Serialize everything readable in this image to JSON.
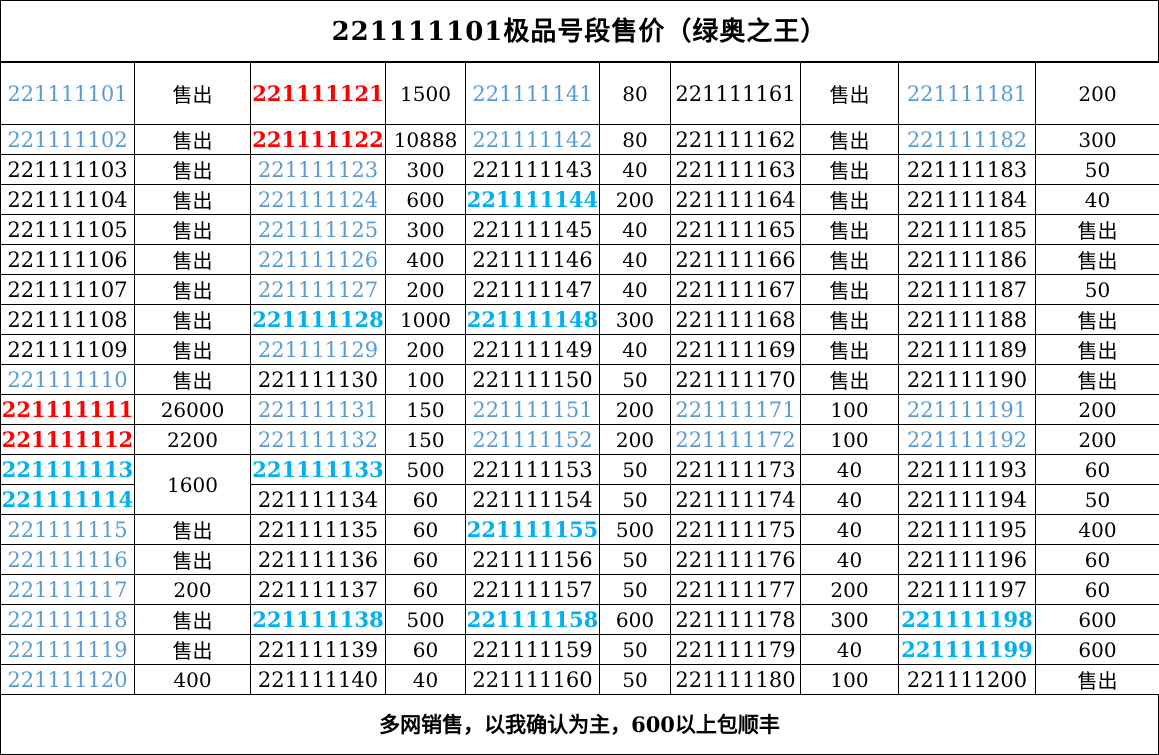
{
  "title": "221111101极品号段售价（绿奥之王）",
  "footer": "多网销售，以我确认为主，600以上包顺丰",
  "colors": {
    "black": "#000000",
    "blue": "#5b9bd5",
    "red": "#ff0000",
    "cyan": "#00b0f0"
  },
  "rows": [
    [
      [
        "221111101",
        "blue"
      ],
      [
        "售出",
        "black"
      ],
      [
        "221111121",
        "red"
      ],
      [
        "1500",
        "black"
      ],
      [
        "221111141",
        "blue"
      ],
      [
        "80",
        "black"
      ],
      [
        "221111161",
        "black"
      ],
      [
        "售出",
        "black"
      ],
      [
        "221111181",
        "blue"
      ],
      [
        "200",
        "black"
      ]
    ],
    [
      [
        "221111102",
        "blue"
      ],
      [
        "售出",
        "black"
      ],
      [
        "221111122",
        "red"
      ],
      [
        "10888",
        "black"
      ],
      [
        "221111142",
        "blue"
      ],
      [
        "80",
        "black"
      ],
      [
        "221111162",
        "black"
      ],
      [
        "售出",
        "black"
      ],
      [
        "221111182",
        "blue"
      ],
      [
        "300",
        "black"
      ]
    ],
    [
      [
        "221111103",
        "black"
      ],
      [
        "售出",
        "black"
      ],
      [
        "221111123",
        "blue"
      ],
      [
        "300",
        "black"
      ],
      [
        "221111143",
        "black"
      ],
      [
        "40",
        "black"
      ],
      [
        "221111163",
        "black"
      ],
      [
        "售出",
        "black"
      ],
      [
        "221111183",
        "black"
      ],
      [
        "50",
        "black"
      ]
    ],
    [
      [
        "221111104",
        "black"
      ],
      [
        "售出",
        "black"
      ],
      [
        "221111124",
        "blue"
      ],
      [
        "600",
        "black"
      ],
      [
        "221111144",
        "cyan"
      ],
      [
        "200",
        "black"
      ],
      [
        "221111164",
        "black"
      ],
      [
        "售出",
        "black"
      ],
      [
        "221111184",
        "black"
      ],
      [
        "40",
        "black"
      ]
    ],
    [
      [
        "221111105",
        "black"
      ],
      [
        "售出",
        "black"
      ],
      [
        "221111125",
        "blue"
      ],
      [
        "300",
        "black"
      ],
      [
        "221111145",
        "black"
      ],
      [
        "40",
        "black"
      ],
      [
        "221111165",
        "black"
      ],
      [
        "售出",
        "black"
      ],
      [
        "221111185",
        "black"
      ],
      [
        "售出",
        "black"
      ]
    ],
    [
      [
        "221111106",
        "black"
      ],
      [
        "售出",
        "black"
      ],
      [
        "221111126",
        "blue"
      ],
      [
        "400",
        "black"
      ],
      [
        "221111146",
        "black"
      ],
      [
        "40",
        "black"
      ],
      [
        "221111166",
        "black"
      ],
      [
        "售出",
        "black"
      ],
      [
        "221111186",
        "black"
      ],
      [
        "售出",
        "black"
      ]
    ],
    [
      [
        "221111107",
        "black"
      ],
      [
        "售出",
        "black"
      ],
      [
        "221111127",
        "blue"
      ],
      [
        "200",
        "black"
      ],
      [
        "221111147",
        "black"
      ],
      [
        "40",
        "black"
      ],
      [
        "221111167",
        "black"
      ],
      [
        "售出",
        "black"
      ],
      [
        "221111187",
        "black"
      ],
      [
        "50",
        "black"
      ]
    ],
    [
      [
        "221111108",
        "black"
      ],
      [
        "售出",
        "black"
      ],
      [
        "221111128",
        "cyan"
      ],
      [
        "1000",
        "black"
      ],
      [
        "221111148",
        "cyan"
      ],
      [
        "300",
        "black"
      ],
      [
        "221111168",
        "black"
      ],
      [
        "售出",
        "black"
      ],
      [
        "221111188",
        "black"
      ],
      [
        "售出",
        "black"
      ]
    ],
    [
      [
        "221111109",
        "black"
      ],
      [
        "售出",
        "black"
      ],
      [
        "221111129",
        "blue"
      ],
      [
        "200",
        "black"
      ],
      [
        "221111149",
        "black"
      ],
      [
        "40",
        "black"
      ],
      [
        "221111169",
        "black"
      ],
      [
        "售出",
        "black"
      ],
      [
        "221111189",
        "black"
      ],
      [
        "售出",
        "black"
      ]
    ],
    [
      [
        "221111110",
        "blue"
      ],
      [
        "售出",
        "black"
      ],
      [
        "221111130",
        "black"
      ],
      [
        "100",
        "black"
      ],
      [
        "221111150",
        "black"
      ],
      [
        "50",
        "black"
      ],
      [
        "221111170",
        "black"
      ],
      [
        "售出",
        "black"
      ],
      [
        "221111190",
        "black"
      ],
      [
        "售出",
        "black"
      ]
    ],
    [
      [
        "221111111",
        "red"
      ],
      [
        "26000",
        "black"
      ],
      [
        "221111131",
        "blue"
      ],
      [
        "150",
        "black"
      ],
      [
        "221111151",
        "blue"
      ],
      [
        "200",
        "black"
      ],
      [
        "221111171",
        "blue"
      ],
      [
        "100",
        "black"
      ],
      [
        "221111191",
        "blue"
      ],
      [
        "200",
        "black"
      ]
    ],
    [
      [
        "221111112",
        "red"
      ],
      [
        "2200",
        "black"
      ],
      [
        "221111132",
        "blue"
      ],
      [
        "150",
        "black"
      ],
      [
        "221111152",
        "blue"
      ],
      [
        "200",
        "black"
      ],
      [
        "221111172",
        "blue"
      ],
      [
        "100",
        "black"
      ],
      [
        "221111192",
        "blue"
      ],
      [
        "200",
        "black"
      ]
    ],
    [
      [
        "221111113",
        "cyan"
      ],
      [
        "1600",
        "black"
      ],
      [
        "221111133",
        "cyan"
      ],
      [
        "500",
        "black"
      ],
      [
        "221111153",
        "black"
      ],
      [
        "50",
        "black"
      ],
      [
        "221111173",
        "black"
      ],
      [
        "40",
        "black"
      ],
      [
        "221111193",
        "black"
      ],
      [
        "60",
        "black"
      ]
    ],
    [
      [
        "221111114",
        "cyan"
      ],
      null,
      [
        "221111134",
        "black"
      ],
      [
        "60",
        "black"
      ],
      [
        "221111154",
        "black"
      ],
      [
        "50",
        "black"
      ],
      [
        "221111174",
        "black"
      ],
      [
        "40",
        "black"
      ],
      [
        "221111194",
        "black"
      ],
      [
        "50",
        "black"
      ]
    ],
    [
      [
        "221111115",
        "blue"
      ],
      [
        "售出",
        "black"
      ],
      [
        "221111135",
        "black"
      ],
      [
        "60",
        "black"
      ],
      [
        "221111155",
        "cyan"
      ],
      [
        "500",
        "black"
      ],
      [
        "221111175",
        "black"
      ],
      [
        "40",
        "black"
      ],
      [
        "221111195",
        "black"
      ],
      [
        "400",
        "black"
      ]
    ],
    [
      [
        "221111116",
        "blue"
      ],
      [
        "售出",
        "black"
      ],
      [
        "221111136",
        "black"
      ],
      [
        "60",
        "black"
      ],
      [
        "221111156",
        "black"
      ],
      [
        "50",
        "black"
      ],
      [
        "221111176",
        "black"
      ],
      [
        "40",
        "black"
      ],
      [
        "221111196",
        "black"
      ],
      [
        "60",
        "black"
      ]
    ],
    [
      [
        "221111117",
        "blue"
      ],
      [
        "200",
        "black"
      ],
      [
        "221111137",
        "black"
      ],
      [
        "60",
        "black"
      ],
      [
        "221111157",
        "black"
      ],
      [
        "50",
        "black"
      ],
      [
        "221111177",
        "black"
      ],
      [
        "200",
        "black"
      ],
      [
        "221111197",
        "black"
      ],
      [
        "60",
        "black"
      ]
    ],
    [
      [
        "221111118",
        "blue"
      ],
      [
        "售出",
        "black"
      ],
      [
        "221111138",
        "cyan"
      ],
      [
        "500",
        "black"
      ],
      [
        "221111158",
        "cyan"
      ],
      [
        "600",
        "black"
      ],
      [
        "221111178",
        "black"
      ],
      [
        "300",
        "black"
      ],
      [
        "221111198",
        "cyan"
      ],
      [
        "600",
        "black"
      ]
    ],
    [
      [
        "221111119",
        "blue"
      ],
      [
        "售出",
        "black"
      ],
      [
        "221111139",
        "black"
      ],
      [
        "60",
        "black"
      ],
      [
        "221111159",
        "black"
      ],
      [
        "50",
        "black"
      ],
      [
        "221111179",
        "black"
      ],
      [
        "40",
        "black"
      ],
      [
        "221111199",
        "cyan"
      ],
      [
        "600",
        "black"
      ]
    ],
    [
      [
        "221111120",
        "blue"
      ],
      [
        "400",
        "black"
      ],
      [
        "221111140",
        "black"
      ],
      [
        "40",
        "black"
      ],
      [
        "221111160",
        "black"
      ],
      [
        "50",
        "black"
      ],
      [
        "221111180",
        "black"
      ],
      [
        "100",
        "black"
      ],
      [
        "221111200",
        "black"
      ],
      [
        "售出",
        "black"
      ]
    ]
  ]
}
